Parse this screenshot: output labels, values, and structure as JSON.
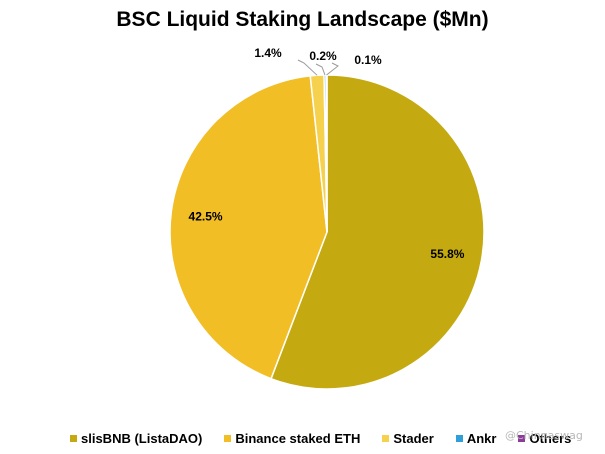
{
  "chart_data": {
    "type": "pie",
    "title": "BSC Liquid Staking Landscape ($Mn)",
    "slices": [
      {
        "label": "slisBNB (ListaDAO)",
        "value": 55.8,
        "display": "55.8%",
        "color": "#C4AA10"
      },
      {
        "label": "Binance staked ETH",
        "value": 42.5,
        "display": "42.5%",
        "color": "#F2BE26"
      },
      {
        "label": "Stader",
        "value": 1.4,
        "display": "1.4%",
        "color": "#F5D14D"
      },
      {
        "label": "Ankr",
        "value": 0.2,
        "display": "0.2%",
        "color": "#2E9FD8"
      },
      {
        "label": "Others",
        "value": 0.1,
        "display": "0.1%",
        "color": "#8E3A9A"
      }
    ],
    "legend_position": "bottom"
  },
  "watermark": "@Chinnaswag"
}
